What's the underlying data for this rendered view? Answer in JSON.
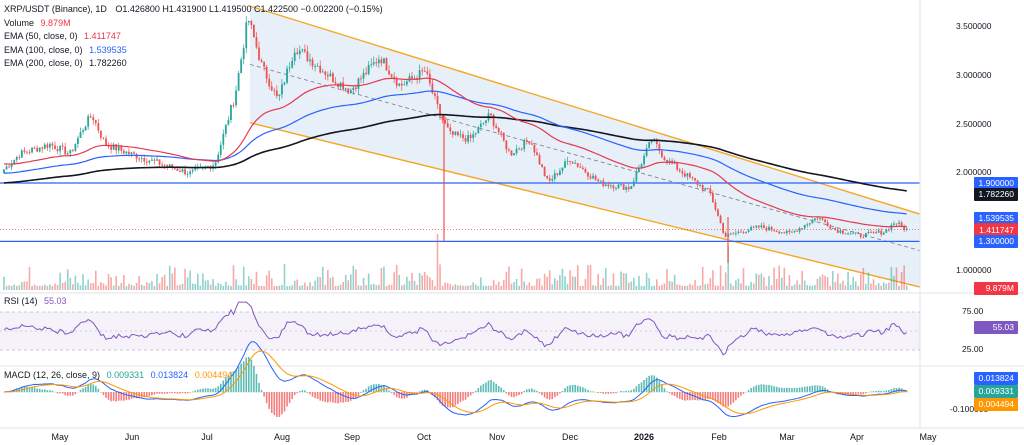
{
  "legend": {
    "symbol": "XRP/USDT (Binance), 1D",
    "ohlc_text": "O1.426800 H1.431900 L1.419500 C1.422500 −0.002200 (−0.15%)",
    "volume_label": "Volume",
    "volume_value": "9.879M",
    "ema50_label": "EMA (50, close, 0)",
    "ema50_value": "1.411747",
    "ema100_label": "EMA (100, close, 0)",
    "ema100_value": "1.539535",
    "ema200_label": "EMA (200, close, 0)",
    "ema200_value": "1.782260"
  },
  "rsi": {
    "label": "RSI (14)",
    "value": "55.03"
  },
  "macd": {
    "label": "MACD (12, 26, close, 9)",
    "value1": "0.009331",
    "value2": "0.013824",
    "value3": "0.004494"
  },
  "price_axis": [
    "3.500000",
    "3.000000",
    "2.500000",
    "2.000000",
    "1.000000"
  ],
  "rsi_axis": [
    "75.00",
    "25.00"
  ],
  "macd_axis": [
    "-0.100000"
  ],
  "price_tags": [
    {
      "text": "1.900000",
      "color": "#2962ff",
      "price": 1.9
    },
    {
      "text": "1.782260",
      "color": "#131722",
      "price": 1.78226
    },
    {
      "text": "1.539535",
      "color": "#2962ff",
      "price": 1.539535
    },
    {
      "text": "1.422500",
      "color": "#e53935",
      "price": 1.4225
    },
    {
      "text": "1.411747",
      "color": "#f23645",
      "price": 1.411747
    },
    {
      "text": "1.300000",
      "color": "#2962ff",
      "price": 1.3
    },
    {
      "text": "9.879M",
      "color": "#f23645",
      "price": 0.82
    }
  ],
  "rsi_tag": {
    "text": "55.03",
    "color": "#7e57c2"
  },
  "macd_tags": [
    {
      "text": "0.013824",
      "color": "#2962ff"
    },
    {
      "text": "0.009331",
      "color": "#26a69a"
    },
    {
      "text": "0.004494",
      "color": "#ff9800"
    }
  ],
  "time_axis": [
    {
      "label": "May",
      "bold": false
    },
    {
      "label": "Jun",
      "bold": false
    },
    {
      "label": "Jul",
      "bold": false
    },
    {
      "label": "Aug",
      "bold": false
    },
    {
      "label": "Sep",
      "bold": false
    },
    {
      "label": "Oct",
      "bold": false
    },
    {
      "label": "Nov",
      "bold": false
    },
    {
      "label": "Dec",
      "bold": false
    },
    {
      "label": "2026",
      "bold": true
    },
    {
      "label": "Feb",
      "bold": false
    },
    {
      "label": "Mar",
      "bold": false
    },
    {
      "label": "Apr",
      "bold": false
    },
    {
      "label": "May",
      "bold": false
    }
  ],
  "colors": {
    "up": "#26a69a",
    "down": "#ef5350",
    "ema50": "#e53950",
    "ema100": "#2962ff",
    "ema200": "#131722",
    "channel": "#f5a623",
    "channel_fill": "#e3ecf7",
    "hline": "#2962ff",
    "rsi": "#7e57c2",
    "macd": "#2962ff",
    "signal": "#ff9800"
  },
  "chart_data": {
    "type": "line",
    "title": "XRP/USDT (Binance), 1D",
    "x_months": [
      "May",
      "Jun",
      "Jul",
      "Aug",
      "Sep",
      "Oct",
      "Nov",
      "Dec",
      "2026",
      "Feb",
      "Mar",
      "Apr",
      "May"
    ],
    "series": [
      {
        "name": "XRP/USDT",
        "approx_monthly_close": [
          2.35,
          2.2,
          2.05,
          3.45,
          3.0,
          2.85,
          2.4,
          2.05,
          1.85,
          1.95,
          1.35,
          1.38,
          1.42
        ]
      },
      {
        "name": "EMA (50, close, 0)",
        "last": 1.411747
      },
      {
        "name": "EMA (100, close, 0)",
        "last": 1.539535
      },
      {
        "name": "EMA (200, close, 0)",
        "last": 1.78226
      }
    ],
    "horizontal_levels": [
      1.9,
      1.3
    ],
    "ylim": [
      0.8,
      3.7
    ],
    "rsi": {
      "last": 55.03,
      "bands": [
        75,
        25
      ]
    },
    "macd": {
      "macd": 0.013824,
      "histogram": 0.009331,
      "signal": 0.004494
    }
  }
}
